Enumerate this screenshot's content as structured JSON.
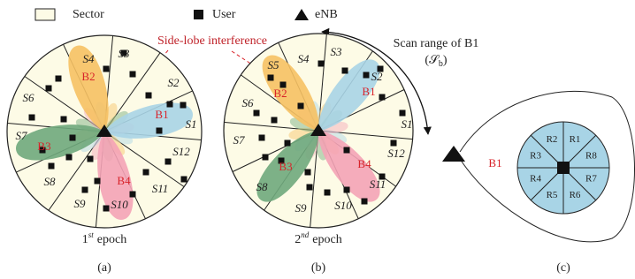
{
  "legend": [
    {
      "label": "Sector"
    },
    {
      "label": "User"
    },
    {
      "label": "eNB"
    }
  ],
  "annotations": {
    "side_lobe": "Side-lobe interference",
    "scan_range": "Scan range of B1",
    "scan_symbol": {
      "open": "(",
      "letter": "𝒮",
      "sub": "b",
      "close": ")"
    }
  },
  "panels": [
    {
      "caption": "(a)",
      "epoch": {
        "number": "1",
        "suffix": "st",
        "word": "epoch"
      },
      "sectors": [
        "S1",
        "S2",
        "S3",
        "S4",
        "S6",
        "S7",
        "S8",
        "S9",
        "S10",
        "S11",
        "S12"
      ],
      "beams": [
        "B1",
        "B2",
        "B3",
        "B4"
      ]
    },
    {
      "caption": "(b)",
      "epoch": {
        "number": "2",
        "suffix": "nd",
        "word": "epoch"
      },
      "sectors": [
        "S1",
        "S2",
        "S3",
        "S4",
        "S5",
        "S6",
        "S7",
        "S8",
        "S9",
        "S10",
        "S11",
        "S12"
      ],
      "beams": [
        "B1",
        "B2",
        "B3",
        "B4"
      ]
    },
    {
      "caption": "(c)",
      "beam": "B1",
      "regions": [
        "R1",
        "R2",
        "R3",
        "R4",
        "R5",
        "R6",
        "R7",
        "R8"
      ]
    }
  ]
}
